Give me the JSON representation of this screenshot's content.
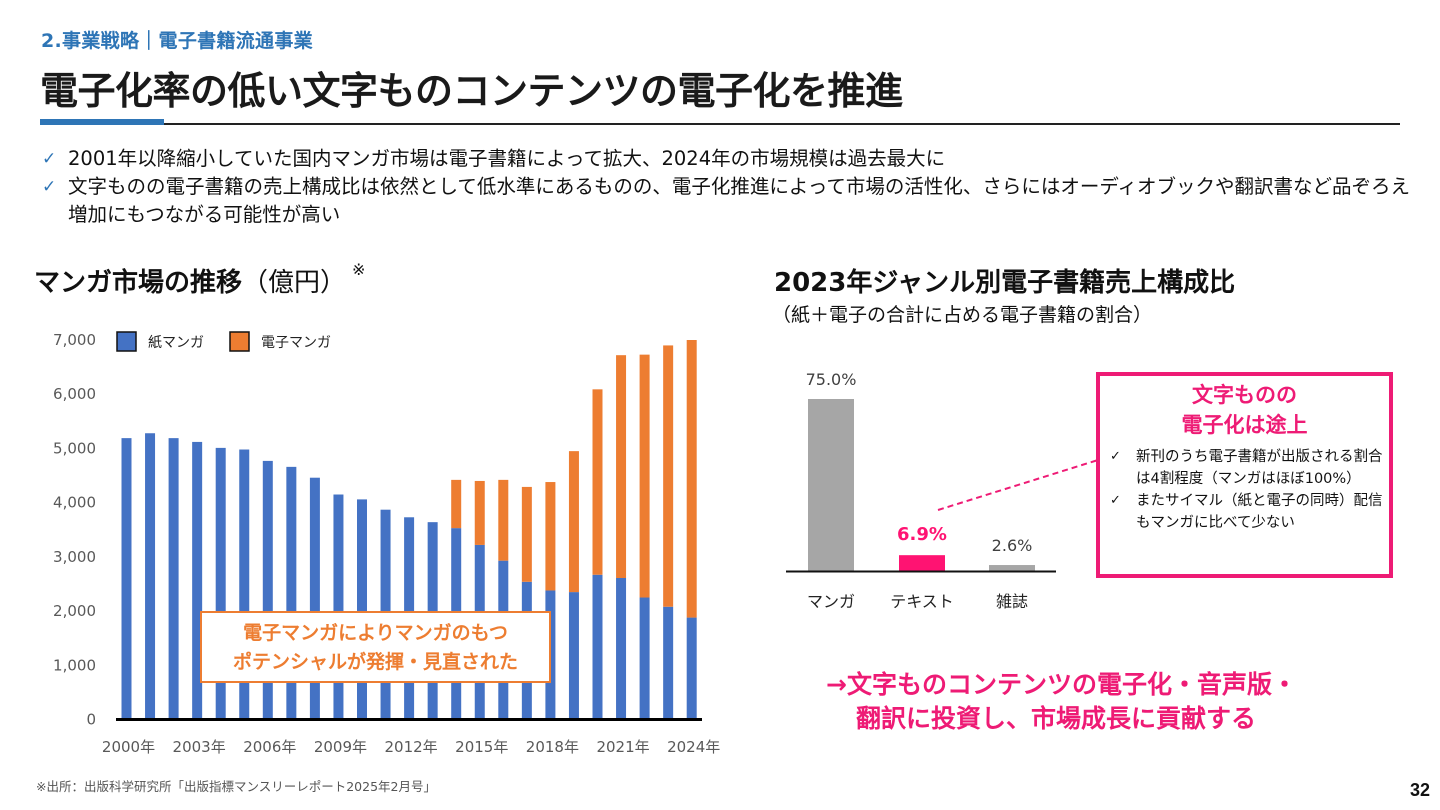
{
  "header": {
    "section_label": "2.事業戦略｜電子書籍流通事業",
    "title": "電子化率の低い文字ものコンテンツの電子化を推進"
  },
  "bullets": [
    {
      "icon": "check-icon",
      "text": "2001年以降縮小していた国内マンガ市場は電子書籍によって拡大、2024年の市場規模は過去最大に"
    },
    {
      "icon": "check-icon",
      "text": "文字ものの電子書籍の売上構成比は依然として低水準にあるものの、電子化推進によって市場の活性化、さらにはオーディオブックや翻訳書など品ぞろえ増加にもつながる可能性が高い"
    }
  ],
  "left_panel": {
    "title": "マンガ市場の推移",
    "unit": "（億円）",
    "note_mark": "※",
    "callout_line1": "電子マンガによりマンガのもつ",
    "callout_line2": "ポテンシャルが発揮・見直された"
  },
  "right_panel": {
    "title": "2023年ジャンル別電子書籍売上構成比",
    "subtitle": "（紙＋電子の合計に占める電子書籍の割合）",
    "box_title_line1": "文字ものの",
    "box_title_line2": "電子化は途上",
    "box_items": [
      "新刊のうち電子書籍が出版される割合は4割程度（マンガはほぼ100%）",
      "またサイマル（紙と電子の同時）配信もマンガに比べて少ない"
    ],
    "box_check": "✓"
  },
  "conclusion": {
    "line1": "→文字ものコンテンツの電子化・音声版・",
    "line2": "翻訳に投資し、市場成長に貢献する"
  },
  "footer": {
    "source": "※出所：出版科学研究所「出版指標マンスリーレポート2025年2月号」",
    "page_number": "32"
  },
  "colors": {
    "accent_blue": "#2E75B6",
    "print_manga": "#4472C4",
    "digital_manga": "#ED7D31",
    "highlight_pink": "#EE1B75",
    "bar_gray": "#A6A6A6"
  },
  "chart_data": [
    {
      "type": "bar",
      "stacked": true,
      "title": "マンガ市場の推移（億円）",
      "xlabel": "",
      "ylabel": "",
      "ylim": [
        0,
        7000
      ],
      "yticks": [
        0,
        1000,
        2000,
        3000,
        4000,
        5000,
        6000,
        7000
      ],
      "ytick_labels": [
        "0",
        "1,000",
        "2,000",
        "3,000",
        "4,000",
        "5,000",
        "6,000",
        "7,000"
      ],
      "categories": [
        "2000",
        "2001",
        "2002",
        "2003",
        "2004",
        "2005",
        "2006",
        "2007",
        "2008",
        "2009",
        "2010",
        "2011",
        "2012",
        "2013",
        "2014",
        "2015",
        "2016",
        "2017",
        "2018",
        "2019",
        "2020",
        "2021",
        "2022",
        "2023",
        "2024"
      ],
      "xtick_labels": [
        "2000年",
        "2003年",
        "2006年",
        "2009年",
        "2012年",
        "2015年",
        "2018年",
        "2021年",
        "2024年"
      ],
      "xtick_every": 3,
      "legend": "top-left",
      "grid": false,
      "series": [
        {
          "name": "紙マンガ",
          "color": "#4472C4",
          "values": [
            5190,
            5280,
            5190,
            5120,
            5010,
            4980,
            4770,
            4660,
            4460,
            4150,
            4060,
            3870,
            3730,
            3640,
            3530,
            3220,
            2930,
            2540,
            2380,
            2350,
            2670,
            2610,
            2250,
            2080,
            1880
          ]
        },
        {
          "name": "電子マンガ",
          "color": "#ED7D31",
          "values": [
            0,
            0,
            0,
            0,
            0,
            0,
            0,
            0,
            0,
            0,
            0,
            0,
            0,
            0,
            890,
            1180,
            1490,
            1750,
            2000,
            2600,
            3420,
            4110,
            4480,
            4820,
            5120
          ]
        }
      ]
    },
    {
      "type": "bar",
      "title": "2023年ジャンル別電子書籍売上構成比",
      "categories": [
        "マンガ",
        "テキスト",
        "雑誌"
      ],
      "values": [
        75.0,
        6.9,
        2.6
      ],
      "value_labels": [
        "75.0%",
        "6.9%",
        "2.6%"
      ],
      "colors": [
        "#A6A6A6",
        "#FF1372",
        "#A6A6A6"
      ],
      "highlight": "テキスト",
      "ylim": [
        0,
        100
      ],
      "unit": "%",
      "grid": false
    }
  ]
}
